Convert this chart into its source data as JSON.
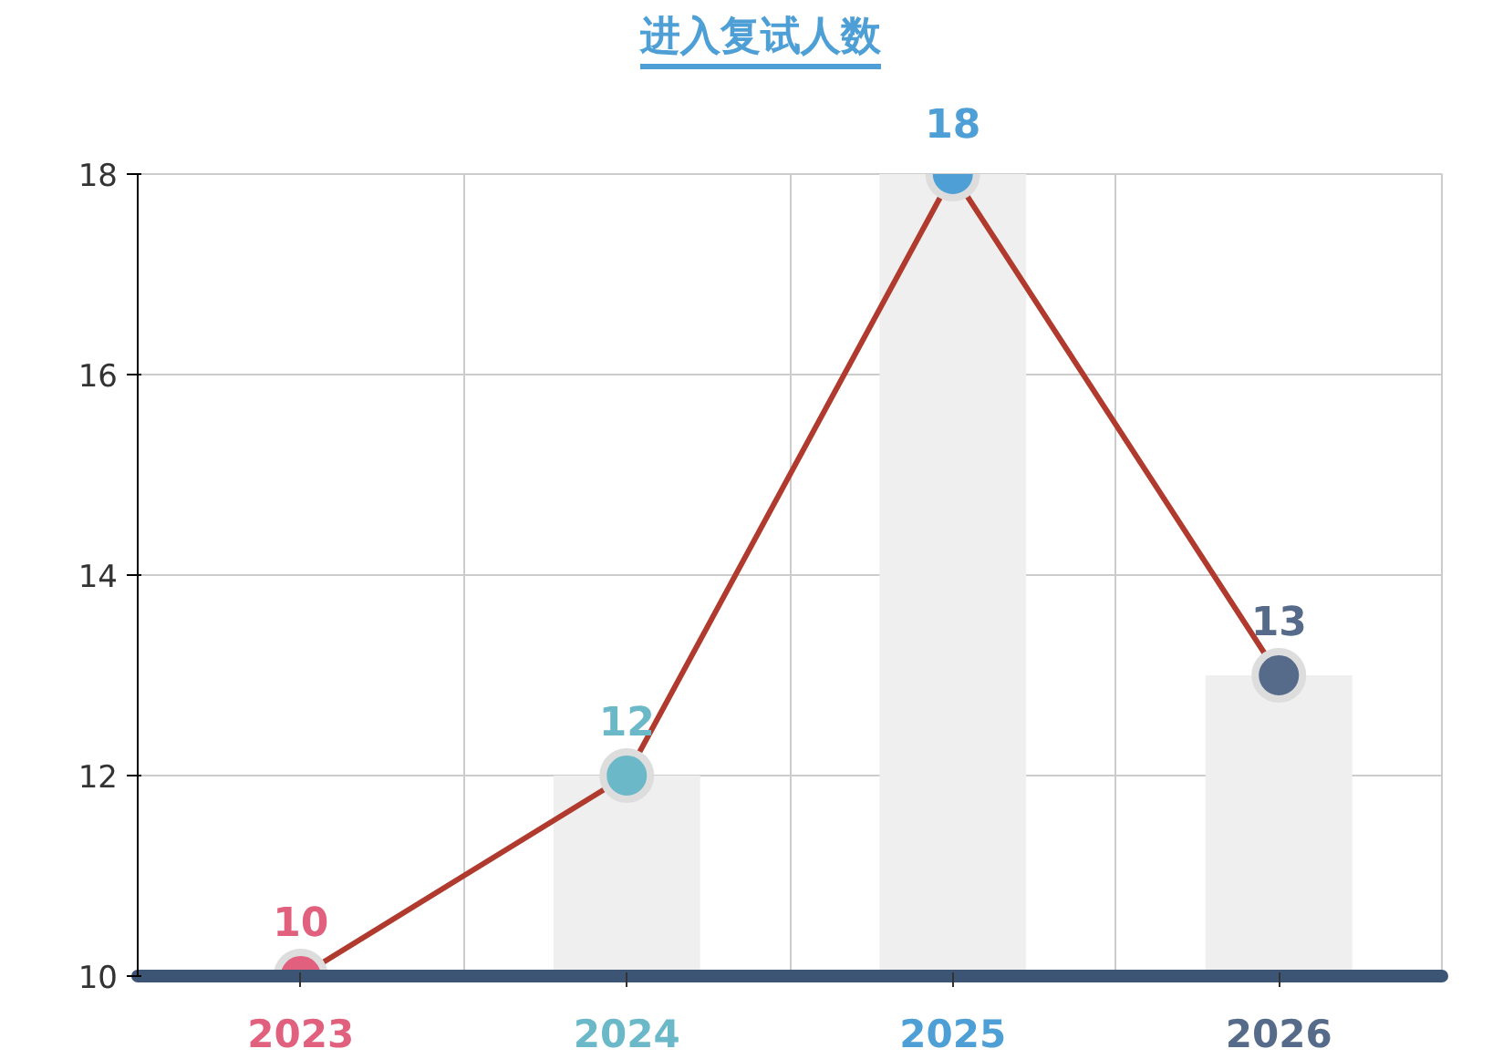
{
  "chart_data": {
    "type": "line",
    "title": "进入复试人数",
    "categories": [
      "2023",
      "2024",
      "2025",
      "2026"
    ],
    "series": [
      {
        "type": "bar",
        "color": "#efefef",
        "values": [
          10,
          12,
          18,
          13
        ]
      },
      {
        "color": "#b03a2e",
        "colors": [
          "#e0607e",
          "#6ab8c8",
          "#4d9fd6",
          "#566a8a"
        ],
        "values": [
          10,
          12,
          18,
          13
        ],
        "value_labels": [
          "10",
          "12",
          "18",
          "13"
        ]
      }
    ],
    "ylim": [
      10,
      18
    ],
    "yticks": [
      10,
      12,
      14,
      16,
      18
    ],
    "grid": true,
    "marker": "circle",
    "line_style": "solid"
  }
}
